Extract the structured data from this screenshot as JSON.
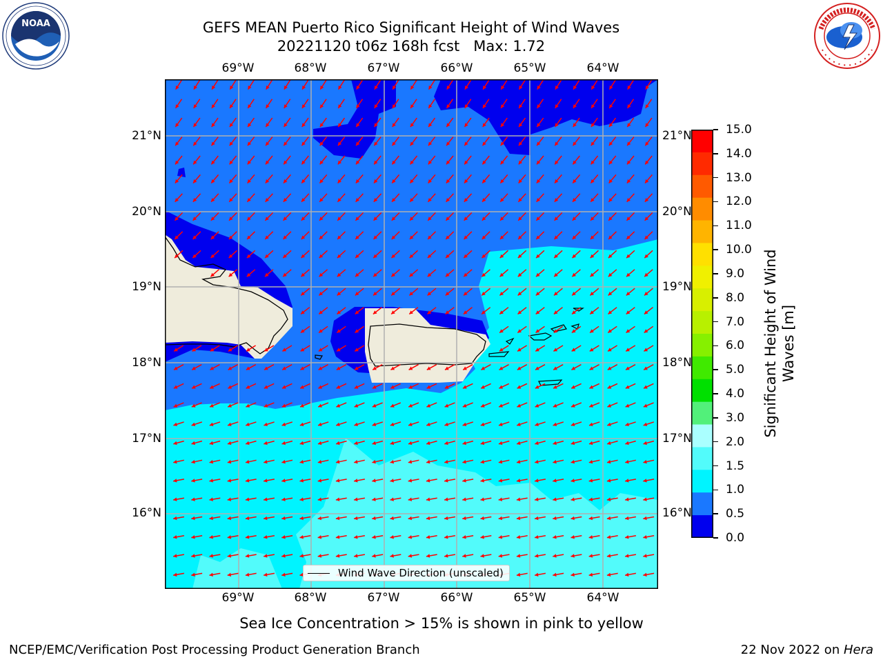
{
  "header": {
    "title_line1": "GEFS MEAN Puerto Rico Significant Height of Wind Waves",
    "title_line2": "20221120 t06z 168h fcst   Max: 1.72"
  },
  "logos": {
    "noara": "NOAA",
    "noaa_ring_top": "NATIONAL OCEANIC AND ATMOSPHERIC ADMINISTRATION",
    "noaa_ring_bottom": "U.S. DEPARTMENT OF COMMERCE",
    "nws_ring_top": "NATIONAL WEATHER SERVICE"
  },
  "map": {
    "lon_ticks": [
      "69°W",
      "68°W",
      "67°W",
      "66°W",
      "65°W",
      "64°W"
    ],
    "lat_ticks": [
      "21°N",
      "20°N",
      "19°N",
      "18°N",
      "17°N",
      "16°N"
    ],
    "legend_label": "Wind Wave Direction (unscaled)",
    "colors": {
      "land": "#efecdc",
      "band_0_0_5": "#0000ee",
      "band_0_5_1_0": "#1a78ff",
      "band_1_0_1_5": "#00f4ff",
      "band_1_5_2_0": "#52fbfb",
      "arrow": "#ff0000"
    }
  },
  "colorbar": {
    "label": "Significant Height of Wind Waves [m]",
    "label_line1": "Significant Height of Wind",
    "label_line2": "Waves [m]",
    "ticks": [
      "15.0",
      "14.0",
      "13.0",
      "12.0",
      "11.0",
      "10.0",
      "9.0",
      "8.0",
      "7.0",
      "6.0",
      "5.0",
      "4.0",
      "3.0",
      "2.0",
      "1.5",
      "1.0",
      "0.5",
      "0.0"
    ],
    "colors_top_to_bottom": [
      "#ff0000",
      "#ff2a00",
      "#ff5a00",
      "#ff8c00",
      "#ffb400",
      "#ffe000",
      "#f0f000",
      "#d8ef00",
      "#b8f000",
      "#86f000",
      "#40ea00",
      "#00e000",
      "#52f07a",
      "#aaffff",
      "#52fbfb",
      "#00f4ff",
      "#1a78ff",
      "#0000ee"
    ]
  },
  "footer": {
    "sea_ice_note": "Sea Ice Concentration > 15% is shown in pink to yellow",
    "branch": "NCEP/EMC/Verification Post Processing Product Generation Branch",
    "date_prefix": "22 Nov 2022 on ",
    "machine": "Hera"
  }
}
